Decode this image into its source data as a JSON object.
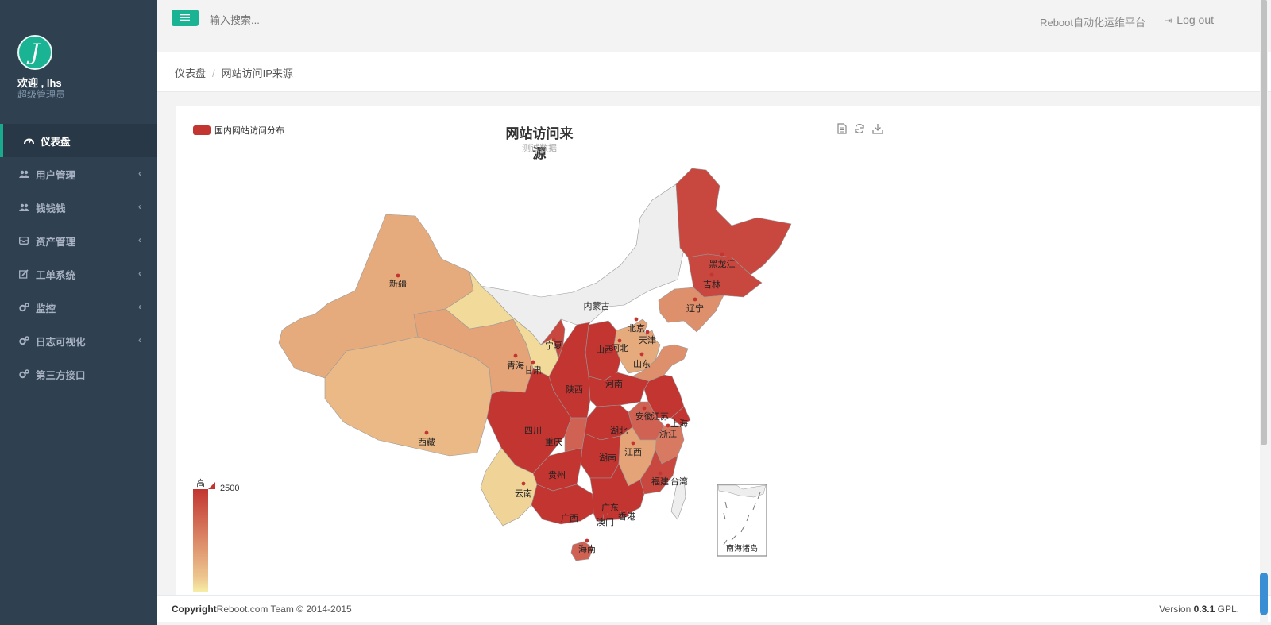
{
  "sidebar": {
    "avatar_letter": "J",
    "welcome": "欢迎 , lhs",
    "role": "超级管理员",
    "items": [
      {
        "label": "仪表盘",
        "icon": "dashboard-icon",
        "active": true
      },
      {
        "label": "用户管理",
        "icon": "users-icon",
        "has_submenu": true
      },
      {
        "label": "钱钱钱",
        "icon": "users-icon",
        "has_submenu": true
      },
      {
        "label": "资产管理",
        "icon": "inbox-icon",
        "has_submenu": true
      },
      {
        "label": "工单系统",
        "icon": "edit-icon",
        "has_submenu": true
      },
      {
        "label": "监控",
        "icon": "cogs-icon",
        "has_submenu": true
      },
      {
        "label": "日志可视化",
        "icon": "cogs-icon",
        "has_submenu": true
      },
      {
        "label": "第三方接口",
        "icon": "cogs-icon",
        "has_submenu": false
      }
    ]
  },
  "topbar": {
    "search_placeholder": "输入搜索...",
    "platform_title": "Reboot自动化运维平台",
    "logout_label": "Log out"
  },
  "breadcrumb": {
    "home": "仪表盘",
    "current": "网站访问IP来源"
  },
  "chart": {
    "legend_label": "国内网站访问分布",
    "title": "网站访问来源",
    "subtitle": "测试数据",
    "toolbox": [
      "data-view-icon",
      "restore-icon",
      "save-image-icon"
    ],
    "visual_map": {
      "high_label": "高",
      "max": 2500,
      "color_high": "#c23531",
      "color_low": "#f6efa6"
    },
    "inset_label": "南海诸岛"
  },
  "chart_data": {
    "type": "map",
    "title": "网站访问来源",
    "subtitle": "测试数据",
    "series": [
      {
        "name": "国内网站访问分布"
      }
    ],
    "visual_map": {
      "min": 0,
      "max": 2500,
      "labels": [
        "高"
      ]
    },
    "regions": [
      {
        "name": "新疆",
        "value": 1000
      },
      {
        "name": "西藏",
        "value": 800
      },
      {
        "name": "青海",
        "value": 1100
      },
      {
        "name": "甘肃",
        "value": 300
      },
      {
        "name": "宁夏",
        "value": 2300
      },
      {
        "name": "内蒙古",
        "value": null
      },
      {
        "name": "黑龙江",
        "value": 2300
      },
      {
        "name": "吉林",
        "value": 2300
      },
      {
        "name": "辽宁",
        "value": 1400
      },
      {
        "name": "北京",
        "value": 1100
      },
      {
        "name": "天津",
        "value": 1100
      },
      {
        "name": "河北",
        "value": 1000
      },
      {
        "name": "山西",
        "value": 2500
      },
      {
        "name": "山东",
        "value": 1400
      },
      {
        "name": "陕西",
        "value": 2500
      },
      {
        "name": "河南",
        "value": 2500
      },
      {
        "name": "江苏",
        "value": 2500
      },
      {
        "name": "安徽",
        "value": 2000
      },
      {
        "name": "上海",
        "value": 2500
      },
      {
        "name": "浙江",
        "value": 1700
      },
      {
        "name": "四川",
        "value": 2500
      },
      {
        "name": "重庆",
        "value": 2000
      },
      {
        "name": "湖北",
        "value": 2500
      },
      {
        "name": "湖南",
        "value": 2500
      },
      {
        "name": "江西",
        "value": 1100
      },
      {
        "name": "贵州",
        "value": 2500
      },
      {
        "name": "云南",
        "value": 400
      },
      {
        "name": "广西",
        "value": 2500
      },
      {
        "name": "广东",
        "value": 2500
      },
      {
        "name": "福建",
        "value": 2300
      },
      {
        "name": "台湾",
        "value": null
      },
      {
        "name": "香港",
        "value": 2500
      },
      {
        "name": "澳门",
        "value": 2500
      },
      {
        "name": "海南",
        "value": 2000
      }
    ]
  },
  "footer": {
    "copyright_bold": "Copyright",
    "copyright_rest": "Reboot.com Team © 2014-2015",
    "version_prefix": "Version",
    "version_number": "0.3.1",
    "version_suffix": "GPL."
  }
}
